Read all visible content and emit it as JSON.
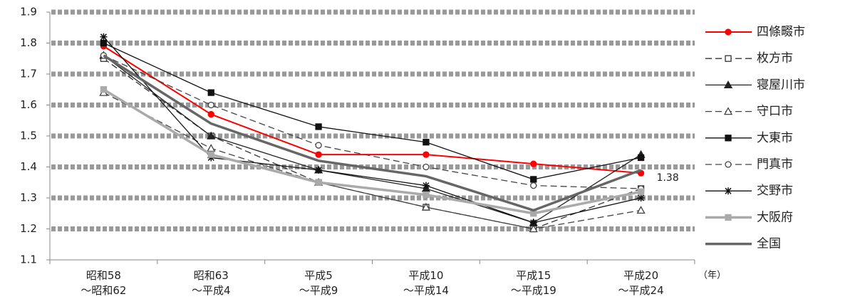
{
  "chart_data": {
    "type": "line",
    "categories": [
      "昭和58\n～昭和62",
      "昭和63\n～平成4",
      "平成5\n～平成9",
      "平成10\n～平成14",
      "平成15\n～平成19",
      "平成20\n～平成24"
    ],
    "x_label": "（年）",
    "ylim": [
      1.1,
      1.9
    ],
    "yticks": [
      1.1,
      1.2,
      1.3,
      1.4,
      1.5,
      1.6,
      1.7,
      1.8,
      1.9
    ],
    "grid": true,
    "legend": "right",
    "series": [
      {
        "name": "四條畷市",
        "color": "#ff0000",
        "marker": "circle",
        "open": false,
        "dash": false,
        "line_width": 2,
        "values": [
          1.79,
          1.57,
          1.44,
          1.44,
          1.41,
          1.38
        ]
      },
      {
        "name": "枚方市",
        "color": "#333333",
        "marker": "square",
        "open": true,
        "dash": true,
        "line_width": 1.3,
        "values": [
          1.75,
          1.5,
          1.35,
          1.27,
          1.2,
          1.33
        ]
      },
      {
        "name": "寝屋川市",
        "color": "#222222",
        "marker": "triangle",
        "open": false,
        "dash": false,
        "line_width": 1.3,
        "values": [
          1.76,
          1.5,
          1.39,
          1.33,
          1.22,
          1.44
        ]
      },
      {
        "name": "守口市",
        "color": "#444444",
        "marker": "triangle",
        "open": true,
        "dash": true,
        "line_width": 1.3,
        "values": [
          1.64,
          1.46,
          1.35,
          1.27,
          1.2,
          1.26
        ]
      },
      {
        "name": "大東市",
        "color": "#111111",
        "marker": "square",
        "open": false,
        "dash": false,
        "line_width": 1.3,
        "values": [
          1.8,
          1.64,
          1.53,
          1.48,
          1.36,
          1.43
        ]
      },
      {
        "name": "門真市",
        "color": "#444444",
        "marker": "circle",
        "open": true,
        "dash": true,
        "line_width": 1.3,
        "values": [
          1.76,
          1.6,
          1.47,
          1.4,
          1.34,
          1.33
        ]
      },
      {
        "name": "交野市",
        "color": "#111111",
        "marker": "asterisk",
        "open": false,
        "dash": false,
        "line_width": 1.3,
        "values": [
          1.82,
          1.43,
          1.39,
          1.34,
          1.22,
          1.3
        ]
      },
      {
        "name": "大阪府",
        "color": "#aaaaaa",
        "marker": "square",
        "open": false,
        "dash": false,
        "line_width": 3.5,
        "values": [
          1.65,
          1.44,
          1.35,
          1.31,
          1.25,
          1.32
        ]
      },
      {
        "name": "全国",
        "color": "#666666",
        "marker": "none",
        "open": false,
        "dash": false,
        "line_width": 3.5,
        "values": [
          1.76,
          1.54,
          1.42,
          1.37,
          1.26,
          1.39
        ]
      }
    ]
  }
}
